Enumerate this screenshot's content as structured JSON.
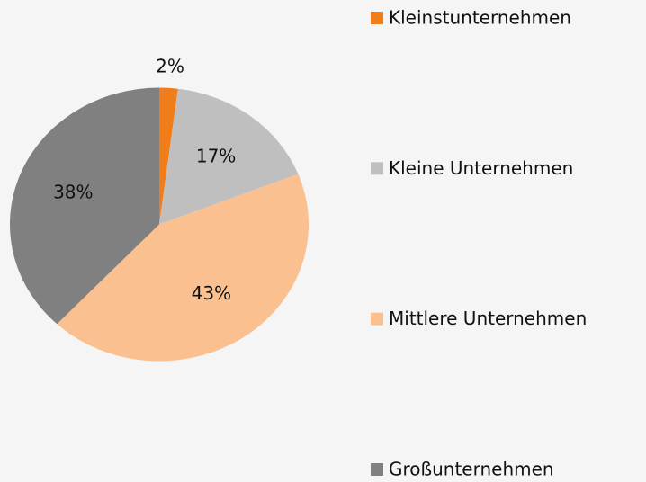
{
  "chart_data": {
    "type": "pie",
    "categories": [
      "Kleinstunternehmen",
      "Kleine Unternehmen",
      "Mittlere Unternehmen",
      "Großunternehmen"
    ],
    "values": [
      2,
      17,
      43,
      38
    ],
    "value_labels": [
      "2%",
      "17%",
      "43%",
      "38%"
    ],
    "colors": [
      "#f07d1a",
      "#bfbfbf",
      "#fbc08f",
      "#808080"
    ],
    "legend": "right"
  }
}
